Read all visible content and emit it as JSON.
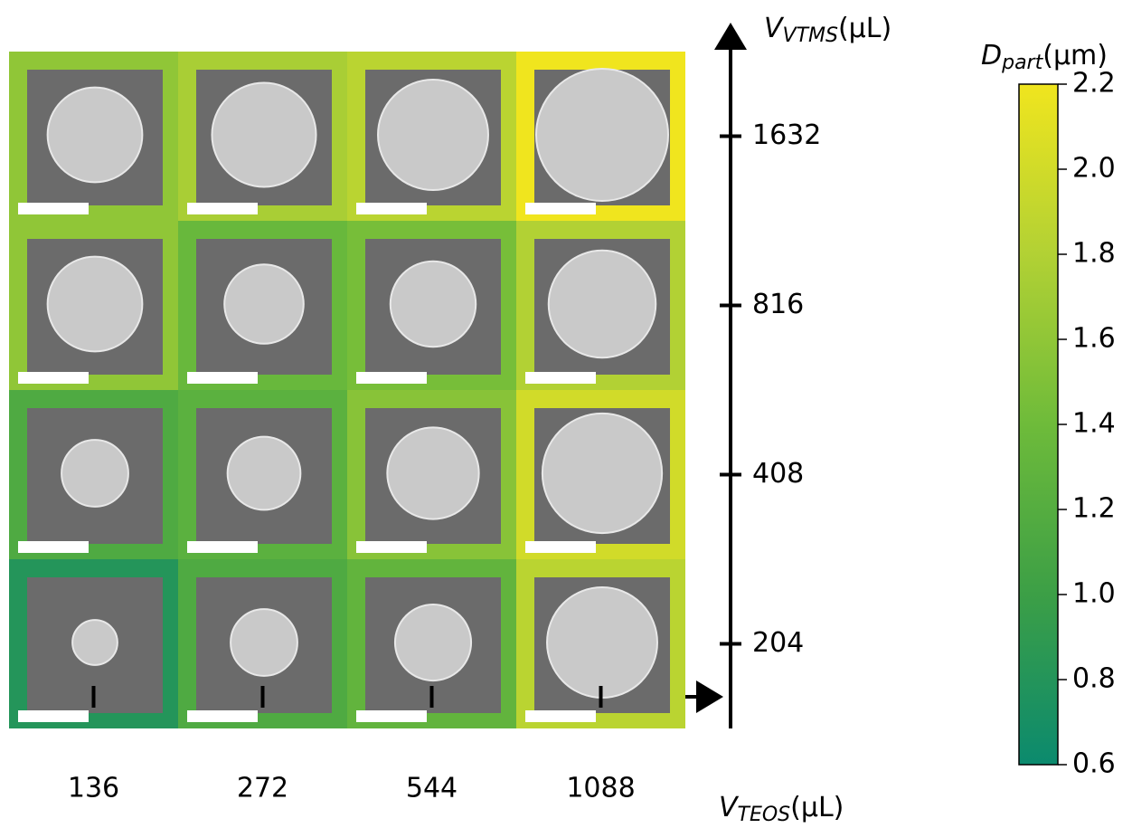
{
  "chart_data": {
    "type": "heatmap",
    "x_categories": [
      "136",
      "272",
      "544",
      "1088"
    ],
    "y_categories": [
      "204",
      "408",
      "816",
      "1632"
    ],
    "values": [
      [
        0.8,
        1.15,
        1.3,
        1.85
      ],
      [
        1.15,
        1.25,
        1.55,
        2.0
      ],
      [
        1.6,
        1.35,
        1.45,
        1.8
      ],
      [
        1.6,
        1.75,
        1.85,
        2.2
      ]
    ],
    "x_label": {
      "symbol": "V",
      "sub": "TEOS",
      "unit": "(μL)"
    },
    "y_label": {
      "symbol": "V",
      "sub": "VTMS",
      "unit": "(μL)"
    },
    "colorbar": {
      "label": {
        "symbol": "D",
        "sub": "part",
        "unit": "(μm)"
      },
      "lim": [
        0.6,
        2.2
      ],
      "ticks": [
        0.6,
        0.8,
        {
          "value": 1,
          "label": "1.0"
        },
        1.2,
        1.4,
        1.6,
        1.8,
        {
          "value": 2,
          "label": "2.0"
        },
        2.2
      ],
      "colors": [
        "#0b8a6e",
        "#3c9f46",
        "#6ebb3a",
        "#b2d134",
        "#f0e51e"
      ]
    }
  }
}
